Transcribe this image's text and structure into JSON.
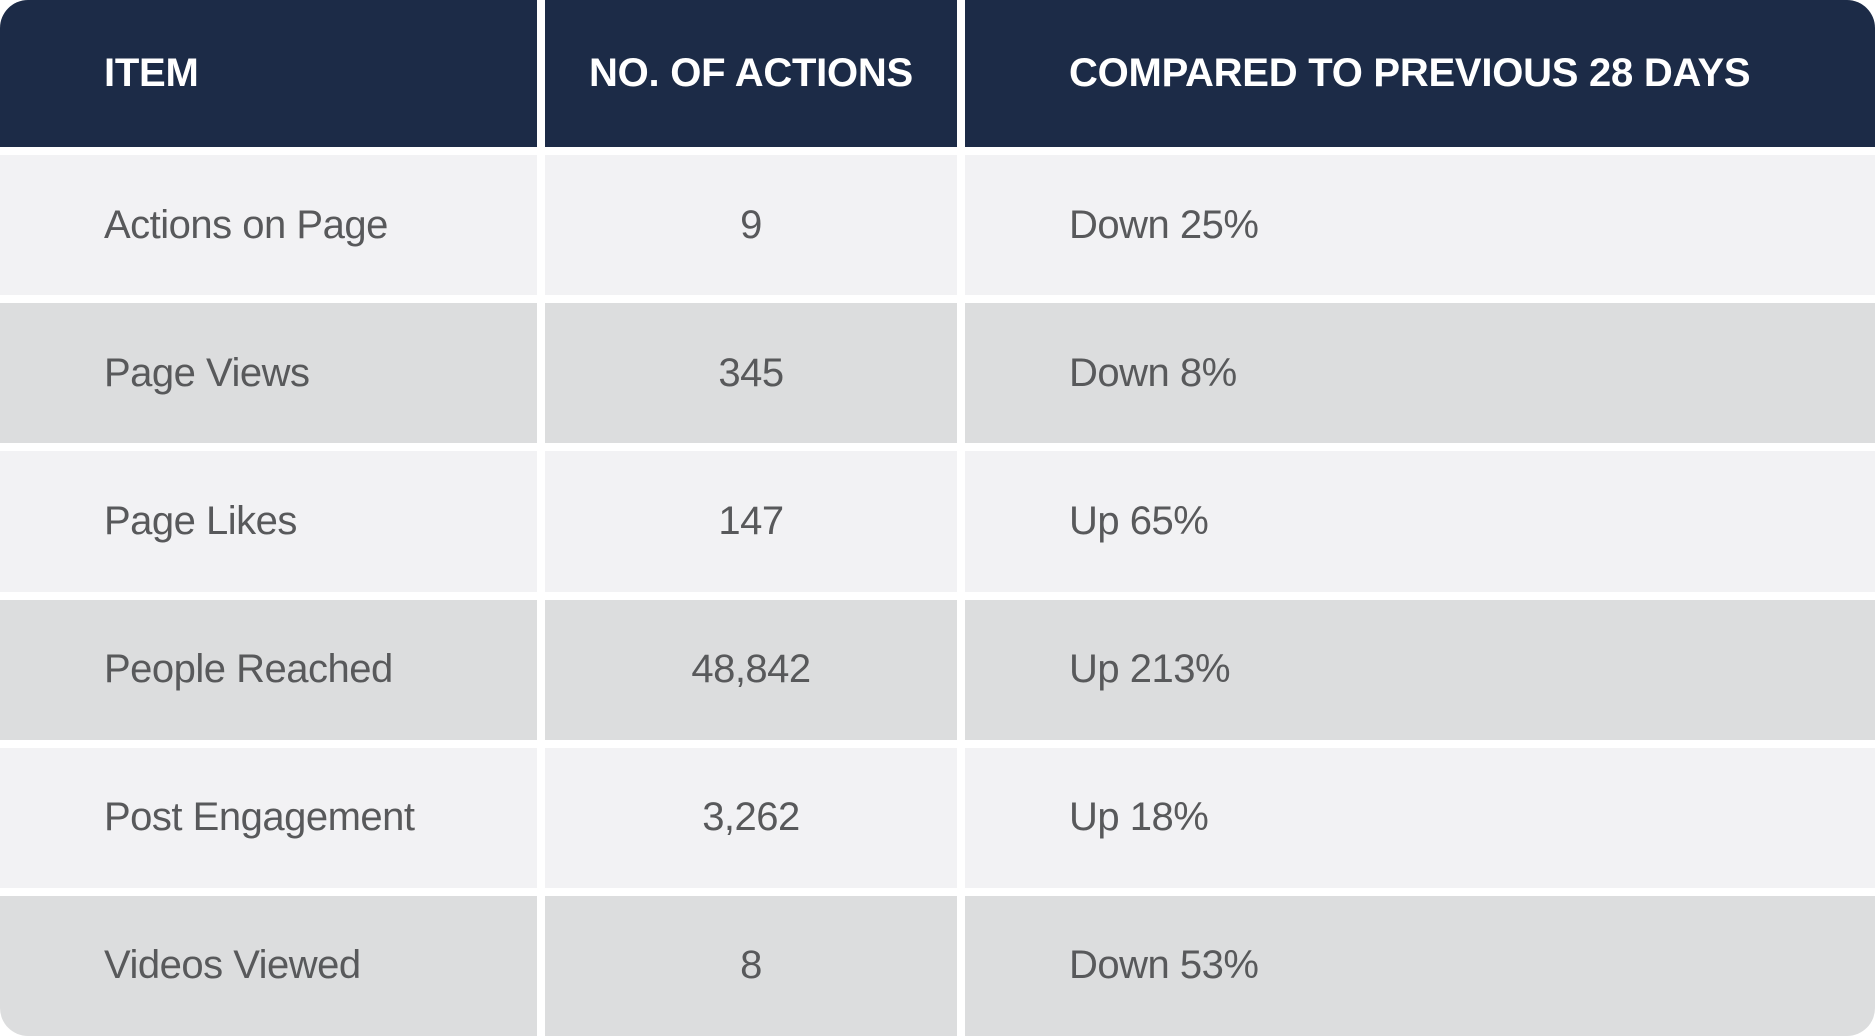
{
  "chart_data": {
    "type": "table",
    "columns": [
      "ITEM",
      "NO. OF ACTIONS",
      "COMPARED TO PREVIOUS 28 DAYS"
    ],
    "rows": [
      [
        "Actions on Page",
        "9",
        "Down 25%"
      ],
      [
        "Page Views",
        "345",
        "Down 8%"
      ],
      [
        "Page Likes",
        "147",
        "Up 65%"
      ],
      [
        "People Reached",
        "48,842",
        "Up 213%"
      ],
      [
        "Post Engagement",
        "3,262",
        "Up 18%"
      ],
      [
        "Videos Viewed",
        "8",
        "Down 53%"
      ]
    ],
    "legend": "none",
    "grid": "off"
  },
  "colors": {
    "header_background": "#1c2b47",
    "header_text": "#ffffff",
    "row_light": "#f2f2f4",
    "row_dark": "#dcddde",
    "cell_text": "#58595b",
    "separator": "#ffffff"
  }
}
